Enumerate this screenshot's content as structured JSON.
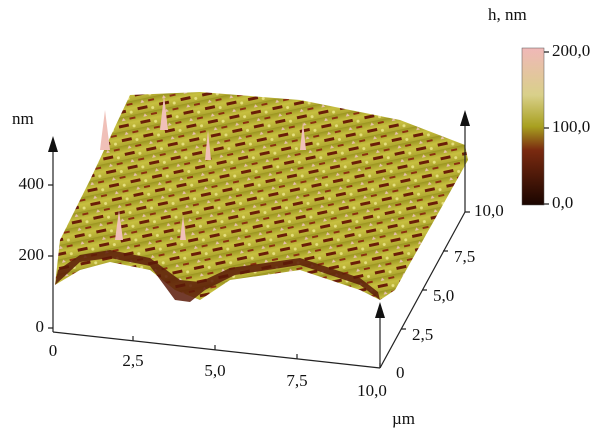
{
  "figure": {
    "z_axis": {
      "label": "nm",
      "ticks": [
        "400",
        "200",
        "0"
      ]
    },
    "x_axis": {
      "ticks": [
        "0",
        "2,5",
        "5,0",
        "7,5",
        "10,0"
      ],
      "unit": "µm"
    },
    "y_axis": {
      "ticks": [
        "0",
        "2,5",
        "5,0",
        "7,5",
        "10,0"
      ]
    },
    "colorbar": {
      "title": "h, nm",
      "ticks": [
        "200,0",
        "100,0",
        "0,0"
      ]
    }
  }
}
